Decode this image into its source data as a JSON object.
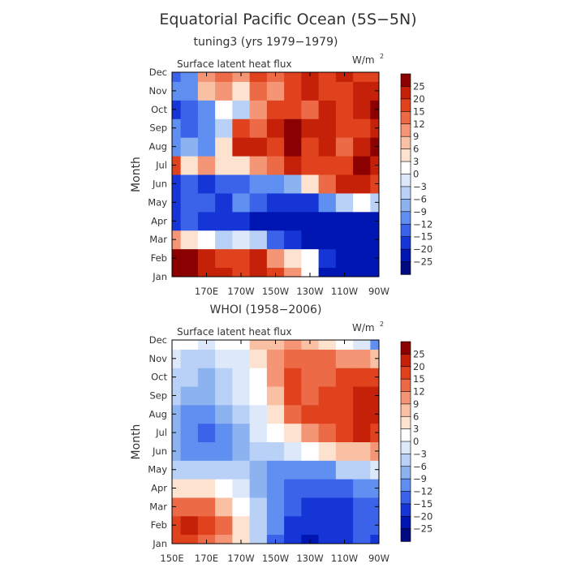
{
  "figure": {
    "title": "Equatorial Pacific Ocean (5S−5N)"
  },
  "chart_data": [
    {
      "type": "heatmap",
      "title": "tuning3 (yrs 1979−1979)",
      "variable_label": "Surface latent heat flux",
      "units_label": "W/m",
      "units_exp": "2",
      "ylabel": "Month",
      "y_categories": [
        "Jan",
        "Feb",
        "Mar",
        "Apr",
        "May",
        "Jun",
        "Jul",
        "Aug",
        "Sep",
        "Oct",
        "Nov",
        "Dec"
      ],
      "x_tick_labels": [
        "170E",
        "170W",
        "150W",
        "130W",
        "110W",
        "90W"
      ],
      "x_range": [
        "150E",
        "90W"
      ],
      "xlim_deg_east": [
        150,
        270
      ],
      "x_tick_deg_east": [
        170,
        190,
        210,
        230,
        250,
        270
      ],
      "x_columns_deg_east": [
        150,
        160,
        170,
        180,
        190,
        200,
        210,
        220,
        230,
        240,
        250,
        260,
        270
      ],
      "z": [
        [
          25,
          25,
          22,
          20,
          15,
          22,
          18,
          10,
          0,
          -25,
          -25,
          -25,
          -25
        ],
        [
          25,
          25,
          20,
          15,
          18,
          20,
          10,
          5,
          0,
          -20,
          -25,
          -25,
          -25
        ],
        [
          10,
          5,
          0,
          -5,
          -3,
          -6,
          -15,
          -20,
          -22,
          -25,
          -25,
          -25,
          -25
        ],
        [
          -20,
          -15,
          -18,
          -20,
          -20,
          -22,
          -25,
          -25,
          -25,
          -25,
          -25,
          -25,
          -25
        ],
        [
          -20,
          -15,
          -15,
          -18,
          -12,
          -15,
          -20,
          -20,
          -18,
          -12,
          -5,
          0,
          -5
        ],
        [
          -18,
          -15,
          -20,
          -15,
          -15,
          -12,
          -10,
          -8,
          5,
          12,
          20,
          22,
          15
        ],
        [
          15,
          5,
          10,
          3,
          5,
          10,
          12,
          20,
          15,
          18,
          15,
          25,
          20
        ],
        [
          -12,
          -8,
          -10,
          5,
          20,
          22,
          18,
          25,
          18,
          20,
          12,
          20,
          25
        ],
        [
          -10,
          -15,
          -12,
          -5,
          15,
          12,
          20,
          25,
          22,
          20,
          15,
          18,
          20
        ],
        [
          -18,
          -15,
          -10,
          0,
          -5,
          10,
          15,
          18,
          12,
          20,
          18,
          22,
          25
        ],
        [
          -12,
          -10,
          8,
          10,
          5,
          12,
          10,
          15,
          20,
          18,
          15,
          20,
          20
        ],
        [
          -15,
          -10,
          10,
          12,
          10,
          15,
          12,
          18,
          20,
          18,
          20,
          15,
          18
        ]
      ]
    },
    {
      "type": "heatmap",
      "title": "WHOI (1958−2006)",
      "variable_label": "Surface latent heat flux",
      "units_label": "W/m",
      "units_exp": "2",
      "ylabel": "Month",
      "y_categories": [
        "Jan",
        "Feb",
        "Mar",
        "Apr",
        "May",
        "Jun",
        "Jul",
        "Aug",
        "Sep",
        "Oct",
        "Nov",
        "Dec"
      ],
      "x_tick_labels": [
        "150E",
        "170E",
        "170W",
        "150W",
        "130W",
        "110W",
        "90W"
      ],
      "x_range": [
        "150E",
        "90W"
      ],
      "xlim_deg_east": [
        150,
        270
      ],
      "x_tick_deg_east": [
        150,
        170,
        190,
        210,
        230,
        250,
        270
      ],
      "x_columns_deg_east": [
        150,
        160,
        170,
        180,
        190,
        200,
        210,
        220,
        230,
        240,
        250,
        260,
        270
      ],
      "z": [
        [
          15,
          17,
          14,
          10,
          5,
          -6,
          -15,
          -18,
          -22,
          -20,
          -18,
          -15,
          -18
        ],
        [
          16,
          20,
          17,
          12,
          5,
          -5,
          -12,
          -16,
          -20,
          -20,
          -17,
          -15,
          -15
        ],
        [
          12,
          14,
          12,
          8,
          2,
          -6,
          -12,
          -15,
          -17,
          -20,
          -18,
          -15,
          -15
        ],
        [
          3,
          5,
          3,
          0,
          -3,
          -8,
          -12,
          -13,
          -15,
          -15,
          -13,
          -12,
          -10
        ],
        [
          -5,
          -6,
          -5,
          -4,
          -5,
          -9,
          -12,
          -12,
          -12,
          -10,
          -6,
          -4,
          -3
        ],
        [
          -9,
          -10,
          -12,
          -10,
          -8,
          -6,
          -4,
          -2,
          1,
          3,
          6,
          8,
          10
        ],
        [
          -9,
          -12,
          -14,
          -10,
          -7,
          -2,
          2,
          5,
          10,
          14,
          17,
          20,
          19
        ],
        [
          -8,
          -10,
          -12,
          -9,
          -5,
          -1,
          5,
          12,
          17,
          16,
          18,
          20,
          20
        ],
        [
          -6,
          -7,
          -8,
          -6,
          -3,
          0,
          8,
          15,
          14,
          15,
          18,
          20,
          23
        ],
        [
          -4,
          -6,
          -7,
          -5,
          -2,
          2,
          10,
          15,
          14,
          14,
          17,
          17,
          16
        ],
        [
          -3,
          -4,
          -5,
          -3,
          -1,
          3,
          10,
          13,
          13,
          12,
          11,
          10,
          8
        ],
        [
          1,
          0,
          -1,
          0,
          2,
          6,
          8,
          9,
          6,
          3,
          0,
          -3,
          -10
        ]
      ]
    }
  ],
  "colorbar": {
    "labels": [
      "25",
      "20",
      "15",
      "12",
      "9",
      "6",
      "3",
      "0",
      "−3",
      "−6",
      "−9",
      "−12",
      "−15",
      "−20",
      "−25"
    ],
    "levels": [
      25,
      20,
      15,
      12,
      9,
      6,
      3,
      0,
      -3,
      -6,
      -9,
      -12,
      -15,
      -20,
      -25
    ],
    "colors": [
      "#8b0000",
      "#c52109",
      "#e0421e",
      "#ec6a45",
      "#f49676",
      "#f9c0a4",
      "#fde2d0",
      "#ffffff",
      "#dde9fb",
      "#b9d1f6",
      "#8db2f0",
      "#5f8ff0",
      "#3b63ea",
      "#1535d6",
      "#0016b2",
      "#000a80"
    ]
  }
}
